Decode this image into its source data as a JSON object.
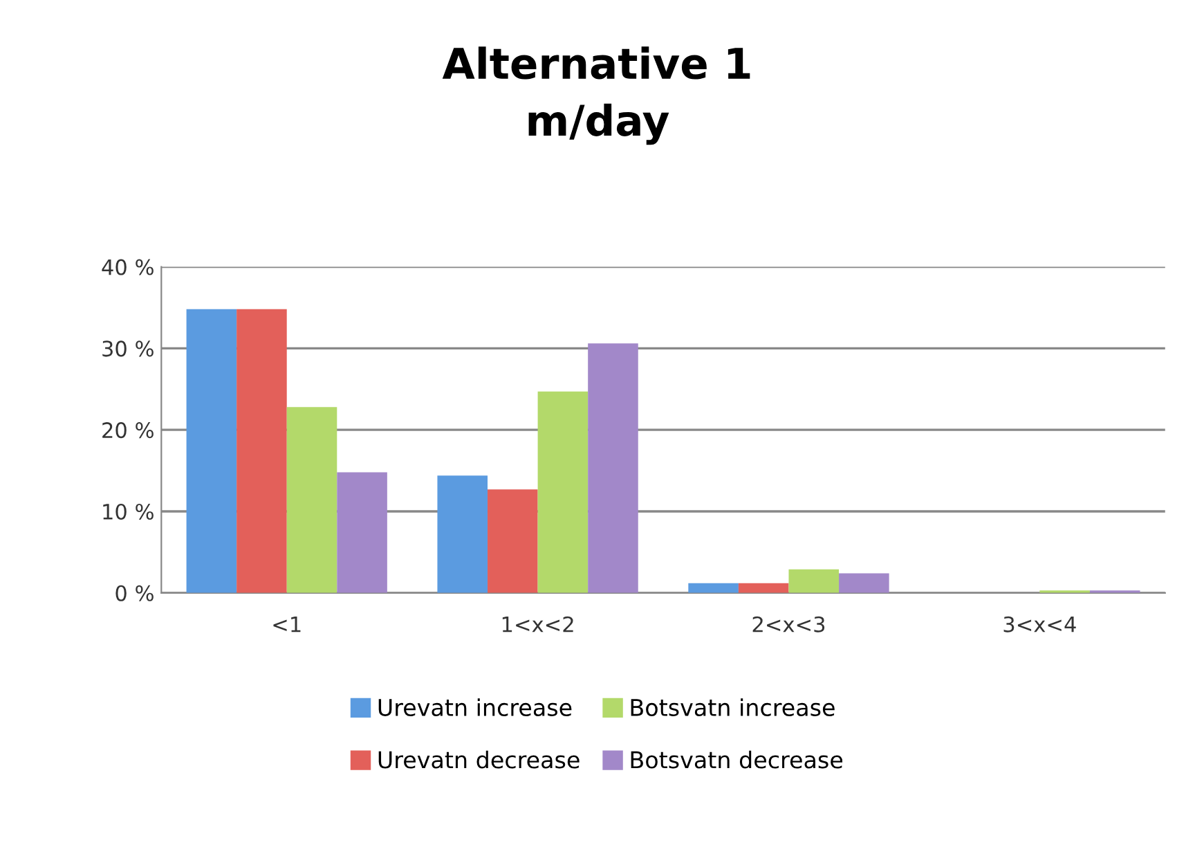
{
  "chart_data": {
    "type": "bar",
    "title": "Alternative 1\nm/day",
    "categories": [
      "<1",
      "1<x<2",
      "2<x<3",
      "3<x<4"
    ],
    "series": [
      {
        "name": "Urevatn increase",
        "color": "#5b9be0",
        "values": [
          34.8,
          14.4,
          1.2,
          0
        ]
      },
      {
        "name": "Urevatn decrease",
        "color": "#e3605a",
        "values": [
          34.8,
          12.7,
          1.2,
          0
        ]
      },
      {
        "name": "Botsvatn increase",
        "color": "#b3d96a",
        "values": [
          22.8,
          24.7,
          2.9,
          0.3
        ]
      },
      {
        "name": "Botsvatn decrease",
        "color": "#a288c9",
        "values": [
          14.8,
          30.6,
          2.4,
          0.3
        ]
      }
    ],
    "ylim": [
      0,
      40
    ],
    "yticks": [
      {
        "value": 0,
        "label": "0 %"
      },
      {
        "value": 10,
        "label": "10 %"
      },
      {
        "value": 20,
        "label": "20 %"
      },
      {
        "value": 30,
        "label": "30 %"
      },
      {
        "value": 40,
        "label": "40 %"
      }
    ],
    "grid": "y",
    "legend": "bottom"
  }
}
